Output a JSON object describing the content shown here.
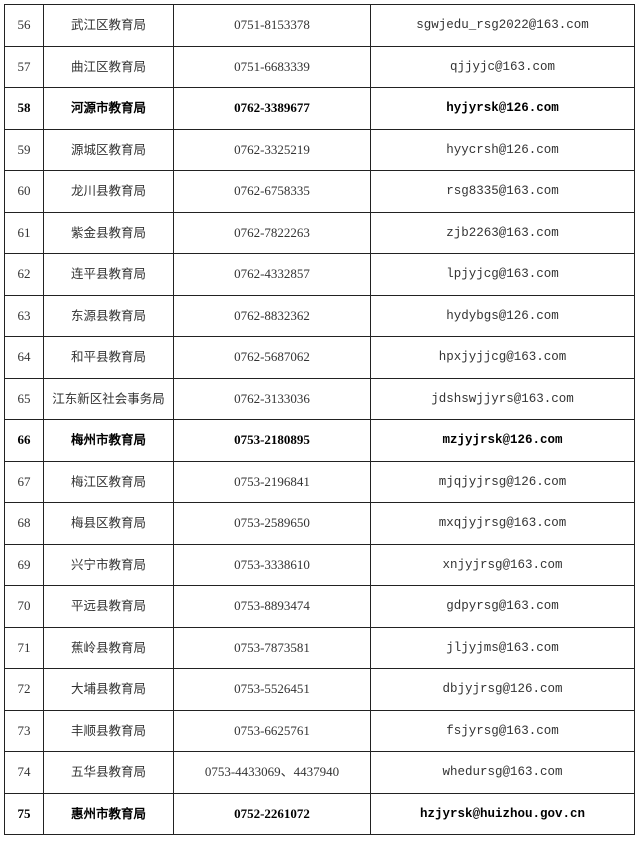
{
  "rows": [
    {
      "no": "56",
      "org": "武江区教育局",
      "phone": "0751-8153378",
      "email": "sgwjedu_rsg2022@163.com",
      "bold": false
    },
    {
      "no": "57",
      "org": "曲江区教育局",
      "phone": "0751-6683339",
      "email": "qjjyjc@163.com",
      "bold": false
    },
    {
      "no": "58",
      "org": "河源市教育局",
      "phone": "0762-3389677",
      "email": "hyjyrsk@126.com",
      "bold": true
    },
    {
      "no": "59",
      "org": "源城区教育局",
      "phone": "0762-3325219",
      "email": "hyycrsh@126.com",
      "bold": false
    },
    {
      "no": "60",
      "org": "龙川县教育局",
      "phone": "0762-6758335",
      "email": "rsg8335@163.com",
      "bold": false
    },
    {
      "no": "61",
      "org": "紫金县教育局",
      "phone": "0762-7822263",
      "email": "zjb2263@163.com",
      "bold": false
    },
    {
      "no": "62",
      "org": "连平县教育局",
      "phone": "0762-4332857",
      "email": "lpjyjcg@163.com",
      "bold": false
    },
    {
      "no": "63",
      "org": "东源县教育局",
      "phone": "0762-8832362",
      "email": "hydybgs@126.com",
      "bold": false
    },
    {
      "no": "64",
      "org": "和平县教育局",
      "phone": "0762-5687062",
      "email": "hpxjyjjcg@163.com",
      "bold": false
    },
    {
      "no": "65",
      "org": "江东新区社会事务局",
      "phone": "0762-3133036",
      "email": "jdshswjjyrs@163.com",
      "bold": false
    },
    {
      "no": "66",
      "org": "梅州市教育局",
      "phone": "0753-2180895",
      "email": "mzjyjrsk@126.com",
      "bold": true
    },
    {
      "no": "67",
      "org": "梅江区教育局",
      "phone": "0753-2196841",
      "email": "mjqjyjrsg@126.com",
      "bold": false
    },
    {
      "no": "68",
      "org": "梅县区教育局",
      "phone": "0753-2589650",
      "email": "mxqjyjrsg@163.com",
      "bold": false
    },
    {
      "no": "69",
      "org": "兴宁市教育局",
      "phone": "0753-3338610",
      "email": "xnjyjrsg@163.com",
      "bold": false
    },
    {
      "no": "70",
      "org": "平远县教育局",
      "phone": "0753-8893474",
      "email": "gdpyrsg@163.com",
      "bold": false
    },
    {
      "no": "71",
      "org": "蕉岭县教育局",
      "phone": "0753-7873581",
      "email": "jljyjms@163.com",
      "bold": false
    },
    {
      "no": "72",
      "org": "大埔县教育局",
      "phone": "0753-5526451",
      "email": "dbjyjrsg@126.com",
      "bold": false
    },
    {
      "no": "73",
      "org": "丰顺县教育局",
      "phone": "0753-6625761",
      "email": "fsjyrsg@163.com",
      "bold": false
    },
    {
      "no": "74",
      "org": "五华县教育局",
      "phone": "0753-4433069、4437940",
      "email": "whedursg@163.com",
      "bold": false
    },
    {
      "no": "75",
      "org": "惠州市教育局",
      "phone": "0752-2261072",
      "email": "hzjyrsk@huizhou.gov.cn",
      "bold": true
    }
  ]
}
